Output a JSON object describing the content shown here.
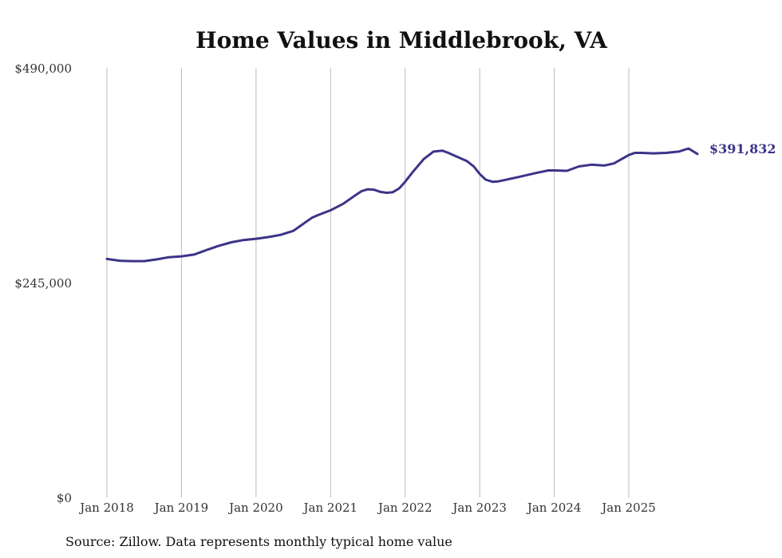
{
  "chart_data": {
    "type": "line",
    "title": "Home Values in Middlebrook, VA",
    "source": "Source: Zillow. Data represents monthly typical home value",
    "ylim": [
      0,
      490000
    ],
    "yticks": [
      0,
      245000,
      490000
    ],
    "ytick_labels": [
      "$0",
      "$245,000",
      "$490,000"
    ],
    "xlim": [
      2018.0,
      2025.92
    ],
    "xticks": [
      2018,
      2019,
      2020,
      2021,
      2022,
      2023,
      2024,
      2025
    ],
    "xtick_labels": [
      "Jan 2018",
      "Jan 2019",
      "Jan 2020",
      "Jan 2021",
      "Jan 2022",
      "Jan 2023",
      "Jan 2024",
      "Jan 2025"
    ],
    "grid": "vertical",
    "line_color": "#3c3488",
    "end_label": "$391,832",
    "series": [
      {
        "name": "Typical home value",
        "x": [
          2018.0,
          2018.17,
          2018.33,
          2018.5,
          2018.67,
          2018.83,
          2019.0,
          2019.17,
          2019.33,
          2019.5,
          2019.67,
          2019.83,
          2020.0,
          2020.17,
          2020.33,
          2020.5,
          2020.6,
          2020.75,
          2020.83,
          2021.0,
          2021.17,
          2021.33,
          2021.42,
          2021.5,
          2021.58,
          2021.67,
          2021.75,
          2021.83,
          2021.92,
          2022.0,
          2022.1,
          2022.25,
          2022.38,
          2022.5,
          2022.58,
          2022.67,
          2022.83,
          2022.92,
          2023.0,
          2023.08,
          2023.17,
          2023.25,
          2023.5,
          2023.75,
          2023.92,
          2024.0,
          2024.17,
          2024.33,
          2024.5,
          2024.67,
          2024.8,
          2025.0,
          2025.08,
          2025.17,
          2025.33,
          2025.5,
          2025.67,
          2025.8,
          2025.92
        ],
        "values": [
          272000,
          270000,
          269500,
          269500,
          271500,
          274000,
          275000,
          277000,
          282000,
          287000,
          291000,
          293500,
          295000,
          297000,
          299500,
          304000,
          310000,
          319000,
          322000,
          327500,
          335000,
          344500,
          349500,
          351500,
          351000,
          348500,
          347500,
          348000,
          352500,
          360000,
          371000,
          386000,
          394500,
          395500,
          393000,
          389500,
          383500,
          377500,
          369000,
          362500,
          360000,
          360500,
          365000,
          370000,
          373000,
          373000,
          372500,
          377500,
          379500,
          378500,
          381000,
          390500,
          393000,
          393000,
          392500,
          393000,
          394500,
          398000,
          391832
        ]
      }
    ]
  }
}
